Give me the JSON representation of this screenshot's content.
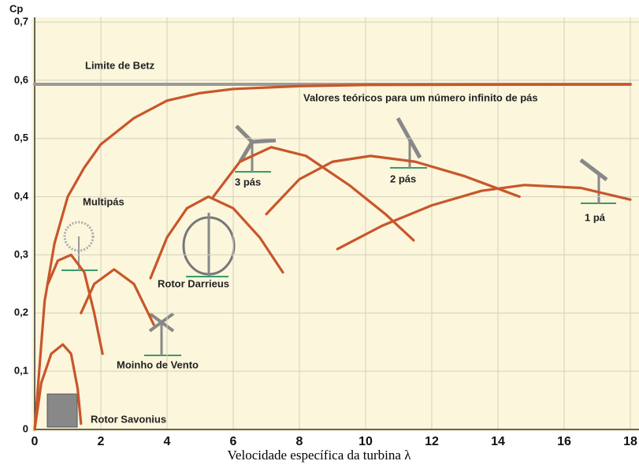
{
  "chart_data": {
    "type": "line",
    "y_label": "Cp",
    "x_label": "Velocidade específica da turbina λ",
    "xlim": [
      0,
      18
    ],
    "xticks": [
      0,
      2,
      4,
      6,
      8,
      10,
      12,
      14,
      16,
      18
    ],
    "ylim": [
      0,
      0.7
    ],
    "yticks": [
      0,
      {
        "value": 0.1,
        "label": "0,1"
      },
      {
        "value": 0.2,
        "label": "0,2"
      },
      {
        "value": 0.3,
        "label": "0,3"
      },
      {
        "value": 0.4,
        "label": "0,4"
      },
      {
        "value": 0.5,
        "label": "0,5"
      },
      {
        "value": 0.6,
        "label": "0,6"
      },
      {
        "value": 0.7,
        "label": "0,7"
      }
    ],
    "grid": true,
    "series": [
      {
        "name": "Limite de Betz",
        "color": "#9a9a9a",
        "x": [
          0,
          18
        ],
        "values": [
          0.593,
          0.593
        ]
      },
      {
        "name": "Valores teóricos para um número infinito de pás",
        "color": "#c8562a",
        "x": [
          0,
          0.3,
          0.6,
          1,
          1.5,
          2,
          3,
          4,
          5,
          6,
          8,
          10,
          18
        ],
        "values": [
          0,
          0.22,
          0.32,
          0.4,
          0.45,
          0.49,
          0.535,
          0.565,
          0.578,
          0.585,
          0.59,
          0.592,
          0.593
        ]
      },
      {
        "name": "Rotor Savonius",
        "color": "#c8562a",
        "x": [
          0,
          0.2,
          0.5,
          0.85,
          1.1,
          1.3,
          1.4
        ],
        "values": [
          0,
          0.08,
          0.13,
          0.146,
          0.13,
          0.07,
          0.01
        ]
      },
      {
        "name": "Multipás",
        "color": "#c8562a",
        "x": [
          0.4,
          0.7,
          1.1,
          1.5,
          1.8,
          2.05
        ],
        "values": [
          0.25,
          0.29,
          0.3,
          0.27,
          0.2,
          0.13
        ]
      },
      {
        "name": "Moinho de Vento",
        "color": "#c8562a",
        "x": [
          1.4,
          1.8,
          2.4,
          3,
          3.6
        ],
        "values": [
          0.2,
          0.25,
          0.275,
          0.25,
          0.18
        ]
      },
      {
        "name": "Rotor Darrieus",
        "color": "#c8562a",
        "x": [
          3.5,
          4,
          4.6,
          5.25,
          6,
          6.8,
          7.5
        ],
        "values": [
          0.26,
          0.33,
          0.38,
          0.4,
          0.38,
          0.33,
          0.27
        ]
      },
      {
        "name": "3 pás",
        "color": "#c8562a",
        "x": [
          5.4,
          6.2,
          7.15,
          8.2,
          9.5,
          10.6,
          11.45
        ],
        "values": [
          0.4,
          0.46,
          0.485,
          0.47,
          0.42,
          0.37,
          0.325
        ]
      },
      {
        "name": "2 pás",
        "color": "#c8562a",
        "x": [
          7,
          8,
          9,
          10.15,
          11.5,
          13,
          14.65
        ],
        "values": [
          0.37,
          0.43,
          0.46,
          0.47,
          0.46,
          0.435,
          0.4
        ]
      },
      {
        "name": "1 pá",
        "color": "#c8562a",
        "x": [
          9.15,
          10.5,
          12,
          13.5,
          14.8,
          16.5,
          18
        ],
        "values": [
          0.31,
          0.35,
          0.385,
          0.41,
          0.42,
          0.415,
          0.395
        ]
      }
    ]
  }
}
